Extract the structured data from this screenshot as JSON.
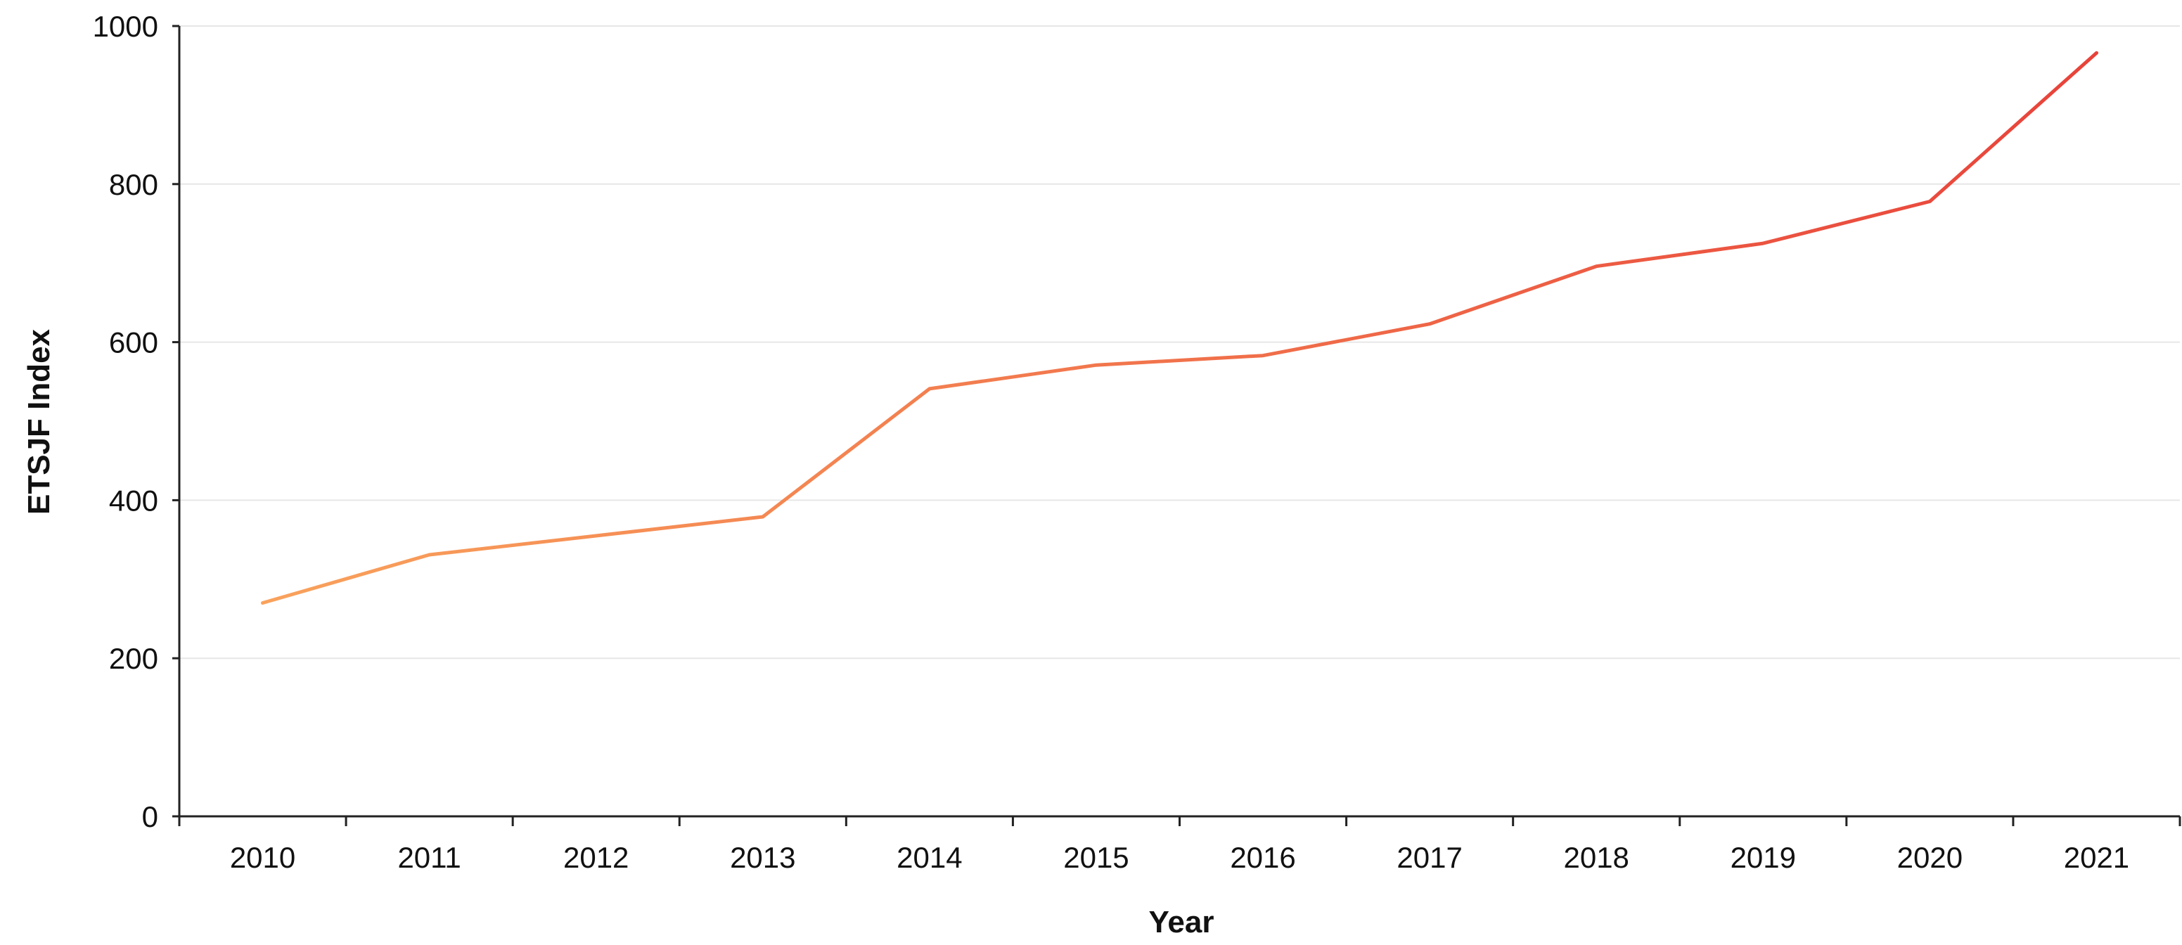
{
  "chart_data": {
    "type": "line",
    "title": "",
    "xlabel": "Year",
    "ylabel": "ETSJF Index",
    "categories": [
      "2010",
      "2011",
      "2012",
      "2013",
      "2014",
      "2015",
      "2016",
      "2017",
      "2018",
      "2019",
      "2020",
      "2021"
    ],
    "y_ticks": [
      "0",
      "200",
      "400",
      "600",
      "800",
      "1000"
    ],
    "series": [
      {
        "values": [
          270,
          331,
          355,
          379,
          541,
          571,
          583,
          623,
          696,
          725,
          778,
          966
        ]
      }
    ],
    "ylim": [
      0,
      1000
    ],
    "grid": "horizontal",
    "legend": "none",
    "colors": {
      "line_start": "#f9a25c",
      "line_end": "#e8423a",
      "axis": "#222222",
      "grid": "#e6e6e6"
    }
  }
}
